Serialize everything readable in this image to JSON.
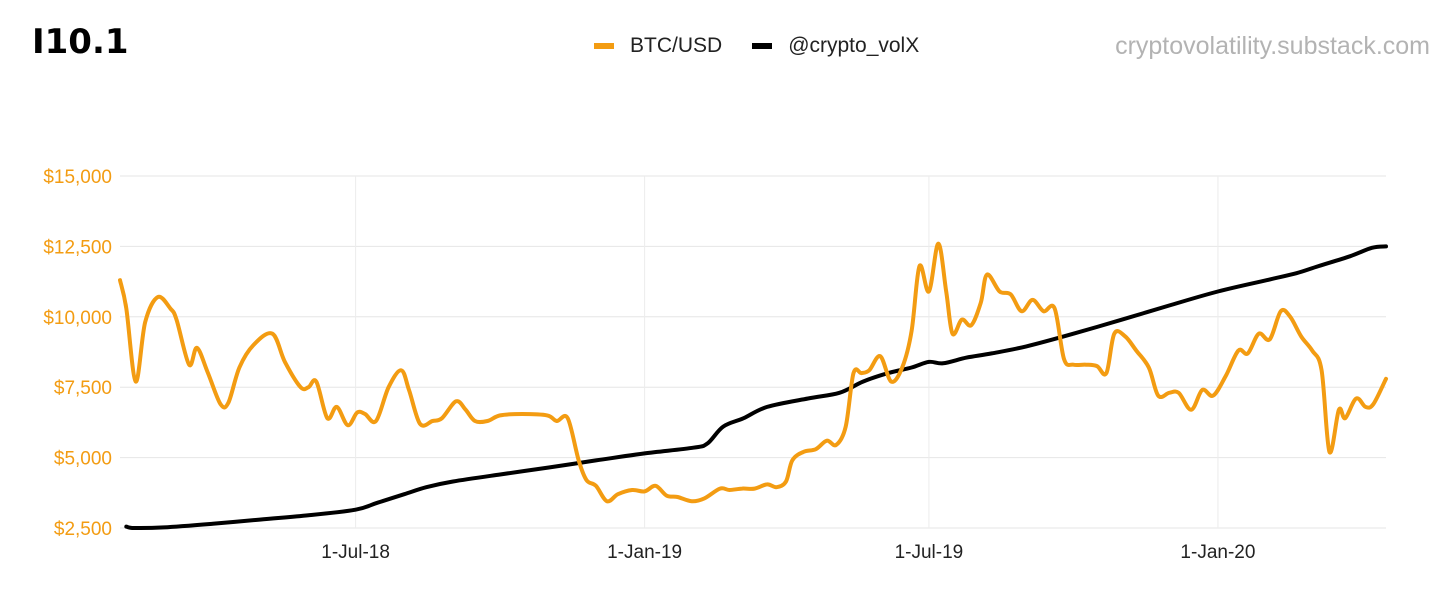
{
  "header": {
    "title": "I10.1",
    "watermark": "cryptovolatility.substack.com"
  },
  "chart_data": {
    "type": "line",
    "x_axis_type": "date",
    "xlim": [
      "2018-02-01",
      "2020-04-17"
    ],
    "ylim": [
      2500,
      15000
    ],
    "y_ticks": [
      {
        "value": 2500,
        "label": "$2,500"
      },
      {
        "value": 5000,
        "label": "$5,000"
      },
      {
        "value": 7500,
        "label": "$7,500"
      },
      {
        "value": 10000,
        "label": "$10,000"
      },
      {
        "value": 12500,
        "label": "$12,500"
      },
      {
        "value": 15000,
        "label": "$15,000"
      }
    ],
    "x_ticks": [
      {
        "value": "2018-07-01",
        "label": "1-Jul-18"
      },
      {
        "value": "2019-01-01",
        "label": "1-Jan-19"
      },
      {
        "value": "2019-07-01",
        "label": "1-Jul-19"
      },
      {
        "value": "2020-01-01",
        "label": "1-Jan-20"
      }
    ],
    "grid": true,
    "legend_position": "top",
    "series": [
      {
        "name": "BTC/USD",
        "color": "#f39c12",
        "points": [
          [
            "2018-02-01",
            11300
          ],
          [
            "2018-02-05",
            10300
          ],
          [
            "2018-02-11",
            7700
          ],
          [
            "2018-02-17",
            9800
          ],
          [
            "2018-02-25",
            10700
          ],
          [
            "2018-03-05",
            10300
          ],
          [
            "2018-03-09",
            9900
          ],
          [
            "2018-03-17",
            8300
          ],
          [
            "2018-03-22",
            8900
          ],
          [
            "2018-03-29",
            8000
          ],
          [
            "2018-04-06",
            6900
          ],
          [
            "2018-04-11",
            6950
          ],
          [
            "2018-04-18",
            8200
          ],
          [
            "2018-04-27",
            9000
          ],
          [
            "2018-05-09",
            9400
          ],
          [
            "2018-05-17",
            8400
          ],
          [
            "2018-05-27",
            7500
          ],
          [
            "2018-06-01",
            7500
          ],
          [
            "2018-06-06",
            7700
          ],
          [
            "2018-06-13",
            6400
          ],
          [
            "2018-06-19",
            6800
          ],
          [
            "2018-06-26",
            6150
          ],
          [
            "2018-07-02",
            6600
          ],
          [
            "2018-07-07",
            6550
          ],
          [
            "2018-07-14",
            6300
          ],
          [
            "2018-07-22",
            7500
          ],
          [
            "2018-07-30",
            8100
          ],
          [
            "2018-08-04",
            7400
          ],
          [
            "2018-08-11",
            6200
          ],
          [
            "2018-08-19",
            6300
          ],
          [
            "2018-08-25",
            6400
          ],
          [
            "2018-09-03",
            7000
          ],
          [
            "2018-09-09",
            6700
          ],
          [
            "2018-09-15",
            6300
          ],
          [
            "2018-09-23",
            6300
          ],
          [
            "2018-10-01",
            6500
          ],
          [
            "2018-10-15",
            6550
          ],
          [
            "2018-10-31",
            6500
          ],
          [
            "2018-11-06",
            6300
          ],
          [
            "2018-11-13",
            6400
          ],
          [
            "2018-11-20",
            4900
          ],
          [
            "2018-11-25",
            4200
          ],
          [
            "2018-12-01",
            4000
          ],
          [
            "2018-12-08",
            3450
          ],
          [
            "2018-12-15",
            3700
          ],
          [
            "2018-12-24",
            3850
          ],
          [
            "2019-01-01",
            3800
          ],
          [
            "2019-01-08",
            4000
          ],
          [
            "2019-01-15",
            3650
          ],
          [
            "2019-01-22",
            3600
          ],
          [
            "2019-01-31",
            3450
          ],
          [
            "2019-02-08",
            3550
          ],
          [
            "2019-02-18",
            3900
          ],
          [
            "2019-02-24",
            3850
          ],
          [
            "2019-03-04",
            3900
          ],
          [
            "2019-03-12",
            3900
          ],
          [
            "2019-03-20",
            4050
          ],
          [
            "2019-03-26",
            3950
          ],
          [
            "2019-04-01",
            4150
          ],
          [
            "2019-04-05",
            4900
          ],
          [
            "2019-04-12",
            5200
          ],
          [
            "2019-04-20",
            5300
          ],
          [
            "2019-04-27",
            5600
          ],
          [
            "2019-05-03",
            5450
          ],
          [
            "2019-05-09",
            6100
          ],
          [
            "2019-05-14",
            8000
          ],
          [
            "2019-05-19",
            8000
          ],
          [
            "2019-05-24",
            8100
          ],
          [
            "2019-05-31",
            8600
          ],
          [
            "2019-06-07",
            7700
          ],
          [
            "2019-06-14",
            8200
          ],
          [
            "2019-06-20",
            9500
          ],
          [
            "2019-06-25",
            11800
          ],
          [
            "2019-07-01",
            10900
          ],
          [
            "2019-07-07",
            12600
          ],
          [
            "2019-07-12",
            10900
          ],
          [
            "2019-07-16",
            9400
          ],
          [
            "2019-07-22",
            9900
          ],
          [
            "2019-07-28",
            9700
          ],
          [
            "2019-08-03",
            10500
          ],
          [
            "2019-08-07",
            11500
          ],
          [
            "2019-08-15",
            10900
          ],
          [
            "2019-08-22",
            10800
          ],
          [
            "2019-08-29",
            10200
          ],
          [
            "2019-09-05",
            10600
          ],
          [
            "2019-09-12",
            10200
          ],
          [
            "2019-09-19",
            10300
          ],
          [
            "2019-09-25",
            8500
          ],
          [
            "2019-10-01",
            8300
          ],
          [
            "2019-10-09",
            8300
          ],
          [
            "2019-10-16",
            8250
          ],
          [
            "2019-10-22",
            8000
          ],
          [
            "2019-10-27",
            9400
          ],
          [
            "2019-11-03",
            9300
          ],
          [
            "2019-11-10",
            8800
          ],
          [
            "2019-11-18",
            8200
          ],
          [
            "2019-11-24",
            7200
          ],
          [
            "2019-12-01",
            7300
          ],
          [
            "2019-12-07",
            7300
          ],
          [
            "2019-12-15",
            6700
          ],
          [
            "2019-12-22",
            7400
          ],
          [
            "2019-12-29",
            7200
          ],
          [
            "2020-01-06",
            7900
          ],
          [
            "2020-01-14",
            8800
          ],
          [
            "2020-01-20",
            8700
          ],
          [
            "2020-01-27",
            9400
          ],
          [
            "2020-02-03",
            9200
          ],
          [
            "2020-02-10",
            10200
          ],
          [
            "2020-02-16",
            10000
          ],
          [
            "2020-02-23",
            9300
          ],
          [
            "2020-03-01",
            8800
          ],
          [
            "2020-03-07",
            8100
          ],
          [
            "2020-03-12",
            5200
          ],
          [
            "2020-03-18",
            6700
          ],
          [
            "2020-03-22",
            6400
          ],
          [
            "2020-03-29",
            7100
          ],
          [
            "2020-04-04",
            6800
          ],
          [
            "2020-04-09",
            6900
          ],
          [
            "2020-04-17",
            7800
          ]
        ]
      },
      {
        "name": "@crypto_volX",
        "color": "#000000",
        "points": [
          [
            "2018-02-05",
            2550
          ],
          [
            "2018-02-10",
            2470
          ],
          [
            "2018-03-01",
            2520
          ],
          [
            "2018-04-01",
            2650
          ],
          [
            "2018-05-01",
            2800
          ],
          [
            "2018-06-01",
            2950
          ],
          [
            "2018-07-01",
            3150
          ],
          [
            "2018-07-15",
            3400
          ],
          [
            "2018-08-01",
            3700
          ],
          [
            "2018-08-15",
            3950
          ],
          [
            "2018-09-01",
            4150
          ],
          [
            "2018-10-01",
            4400
          ],
          [
            "2018-11-01",
            4650
          ],
          [
            "2018-12-01",
            4900
          ],
          [
            "2019-01-01",
            5150
          ],
          [
            "2019-02-01",
            5350
          ],
          [
            "2019-02-10",
            5500
          ],
          [
            "2019-02-20",
            6100
          ],
          [
            "2019-03-05",
            6400
          ],
          [
            "2019-03-20",
            6800
          ],
          [
            "2019-04-15",
            7100
          ],
          [
            "2019-05-05",
            7300
          ],
          [
            "2019-05-20",
            7700
          ],
          [
            "2019-06-05",
            8000
          ],
          [
            "2019-06-20",
            8200
          ],
          [
            "2019-07-01",
            8400
          ],
          [
            "2019-07-10",
            8350
          ],
          [
            "2019-07-25",
            8550
          ],
          [
            "2019-08-10",
            8700
          ],
          [
            "2019-09-01",
            8950
          ],
          [
            "2019-10-01",
            9400
          ],
          [
            "2019-11-01",
            9900
          ],
          [
            "2019-12-01",
            10400
          ],
          [
            "2020-01-01",
            10900
          ],
          [
            "2020-02-01",
            11300
          ],
          [
            "2020-02-20",
            11550
          ],
          [
            "2020-03-05",
            11800
          ],
          [
            "2020-03-25",
            12150
          ],
          [
            "2020-04-08",
            12450
          ],
          [
            "2020-04-17",
            12500
          ]
        ]
      }
    ]
  }
}
